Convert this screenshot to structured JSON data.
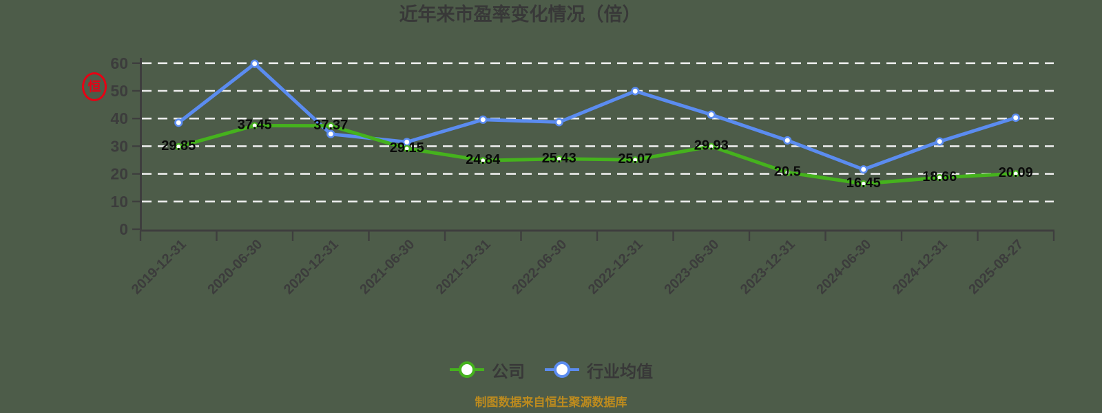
{
  "page": {
    "background_color": "#4d5c49"
  },
  "header": {
    "title": "近年来市盈率变化情况（倍）"
  },
  "watermark": {
    "seal_char": "恒",
    "color": "#e60014"
  },
  "legend": {
    "items": [
      {
        "label": "公司",
        "color": "#45b21d"
      },
      {
        "label": "行业均值",
        "color": "#5b8cf0"
      }
    ]
  },
  "footer": {
    "source_note": "制图数据来自恒生聚源数据库",
    "color": "#bd8b1e"
  },
  "chart_data": {
    "type": "line",
    "title": "近年来市盈率变化情况（倍）",
    "categories": [
      "2019-12-31",
      "2020-06-30",
      "2020-12-31",
      "2021-06-30",
      "2021-12-31",
      "2022-06-30",
      "2022-12-31",
      "2023-06-30",
      "2023-12-31",
      "2024-06-30",
      "2024-12-31",
      "2025-08-27"
    ],
    "series": [
      {
        "name": "公司",
        "color": "#45b21d",
        "values": [
          29.85,
          37.45,
          37.37,
          29.15,
          24.84,
          25.43,
          25.07,
          29.93,
          20.5,
          16.45,
          18.66,
          20.09
        ],
        "show_point_labels": true
      },
      {
        "name": "行业均值",
        "color": "#5b8cf0",
        "values": [
          38.5,
          59.8,
          34.4,
          31.5,
          39.6,
          38.7,
          49.9,
          41.4,
          32.1,
          21.6,
          31.7,
          40.3
        ],
        "show_point_labels": false
      }
    ],
    "ylim": [
      0,
      60
    ],
    "yticks": [
      0,
      10,
      20,
      30,
      40,
      50,
      60
    ],
    "grid": "horizontal-dashed",
    "grid_color": "#ececec",
    "axis_color": "#3e3e3e",
    "axis_text_color": "#3c3c3c",
    "value_label_color": "#0a0a0a",
    "marker_fill": "#ffffff",
    "legend_position": "bottom"
  }
}
